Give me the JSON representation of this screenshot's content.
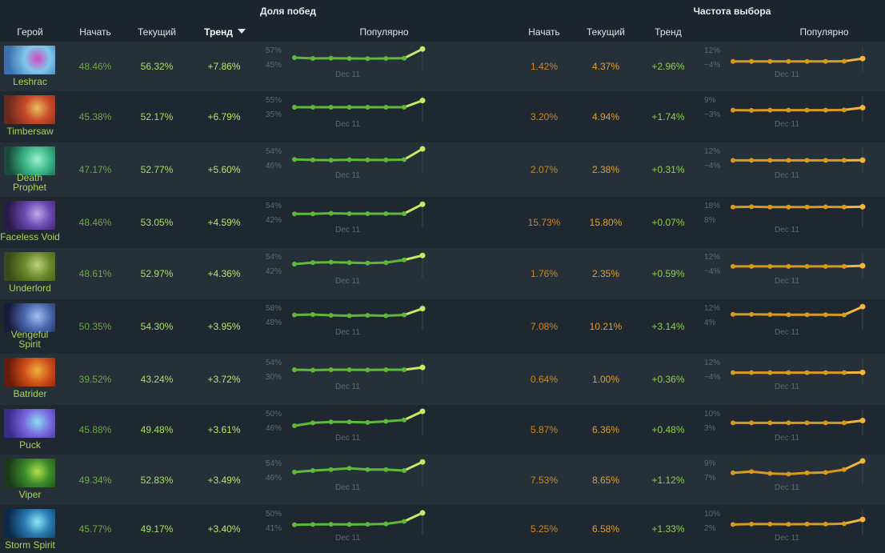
{
  "headers": {
    "winrate_group": "Доля побед",
    "pick_group": "Частота выбора",
    "hero": "Герой",
    "start": "Начать",
    "current": "Текущий",
    "trend": "Тренд",
    "popular": "Популярно",
    "start2": "Начать",
    "current2": "Текущий",
    "trend2": "Тренд",
    "popular2": "Популярно"
  },
  "colors": {
    "winrate_line": "#5fb83a",
    "winrate_last": "#c8e86a",
    "pick_line": "#d89a1e",
    "pick_last": "#f2b53a",
    "bg": "#1c242d"
  },
  "heroes": [
    {
      "name": "Leshrac",
      "portrait": "leshrac-portrait",
      "wr_start": "48.46%",
      "wr_cur": "56.32%",
      "wr_trend": "+7.86%",
      "wr_hi": "57%",
      "wr_lo": "45%",
      "wr_date": "Dec 11",
      "pk_start": "1.42%",
      "pk_cur": "4.37%",
      "pk_trend": "+2.96%",
      "pk_hi": "12%",
      "pk_lo": "−4%",
      "pk_date": "Dec 11",
      "wr_series": [
        0.5,
        0.46,
        0.47,
        0.46,
        0.45,
        0.46,
        0.47,
        0.95
      ],
      "pk_series": [
        0.3,
        0.3,
        0.3,
        0.3,
        0.3,
        0.3,
        0.31,
        0.45
      ]
    },
    {
      "name": "Timbersaw",
      "portrait": "timbersaw-portrait",
      "wr_start": "45.38%",
      "wr_cur": "52.17%",
      "wr_trend": "+6.79%",
      "wr_hi": "55%",
      "wr_lo": "35%",
      "wr_date": "Dec 11",
      "pk_start": "3.20%",
      "pk_cur": "4.94%",
      "pk_trend": "+1.74%",
      "pk_hi": "9%",
      "pk_lo": "−3%",
      "pk_date": "Dec 11",
      "wr_series": [
        0.5,
        0.5,
        0.5,
        0.5,
        0.5,
        0.5,
        0.5,
        0.85
      ],
      "pk_series": [
        0.35,
        0.34,
        0.35,
        0.35,
        0.35,
        0.35,
        0.36,
        0.48
      ]
    },
    {
      "name": "Death Prophet",
      "portrait": "death-prophet-portrait",
      "wr_start": "47.17%",
      "wr_cur": "52.77%",
      "wr_trend": "+5.60%",
      "wr_hi": "54%",
      "wr_lo": "46%",
      "wr_date": "Dec 11",
      "pk_start": "2.07%",
      "pk_cur": "2.38%",
      "pk_trend": "+0.31%",
      "pk_hi": "12%",
      "pk_lo": "−4%",
      "pk_date": "Dec 11",
      "wr_series": [
        0.45,
        0.42,
        0.41,
        0.43,
        0.42,
        0.42,
        0.44,
        1.0
      ],
      "pk_series": [
        0.4,
        0.4,
        0.4,
        0.4,
        0.4,
        0.4,
        0.4,
        0.41
      ]
    },
    {
      "name": "Faceless Void",
      "portrait": "faceless-void-portrait",
      "wr_start": "48.46%",
      "wr_cur": "53.05%",
      "wr_trend": "+4.59%",
      "wr_hi": "54%",
      "wr_lo": "42%",
      "wr_date": "Dec 11",
      "pk_start": "15.73%",
      "pk_cur": "15.80%",
      "pk_trend": "+0.07%",
      "pk_hi": "18%",
      "pk_lo": "8%",
      "pk_date": "Dec 11",
      "wr_series": [
        0.45,
        0.45,
        0.48,
        0.46,
        0.46,
        0.46,
        0.46,
        0.95
      ],
      "pk_series": [
        0.8,
        0.82,
        0.8,
        0.8,
        0.8,
        0.81,
        0.8,
        0.82
      ]
    },
    {
      "name": "Underlord",
      "portrait": "underlord-portrait",
      "wr_start": "48.61%",
      "wr_cur": "52.97%",
      "wr_trend": "+4.36%",
      "wr_hi": "54%",
      "wr_lo": "42%",
      "wr_date": "Dec 11",
      "pk_start": "1.76%",
      "pk_cur": "2.35%",
      "pk_trend": "+0.59%",
      "pk_hi": "12%",
      "pk_lo": "−4%",
      "pk_date": "Dec 11",
      "wr_series": [
        0.5,
        0.58,
        0.6,
        0.58,
        0.55,
        0.58,
        0.72,
        0.95
      ],
      "pk_series": [
        0.38,
        0.38,
        0.38,
        0.38,
        0.38,
        0.38,
        0.38,
        0.41
      ]
    },
    {
      "name": "Vengeful Spirit",
      "portrait": "vengeful-spirit-portrait",
      "wr_start": "50.35%",
      "wr_cur": "54.30%",
      "wr_trend": "+3.95%",
      "wr_hi": "58%",
      "wr_lo": "48%",
      "wr_date": "Dec 11",
      "pk_start": "7.08%",
      "pk_cur": "10.21%",
      "pk_trend": "+3.14%",
      "pk_hi": "12%",
      "pk_lo": "4%",
      "pk_date": "Dec 11",
      "wr_series": [
        0.52,
        0.54,
        0.5,
        0.48,
        0.5,
        0.48,
        0.52,
        0.85
      ],
      "pk_series": [
        0.55,
        0.55,
        0.54,
        0.53,
        0.53,
        0.53,
        0.52,
        0.95
      ]
    },
    {
      "name": "Batrider",
      "portrait": "batrider-portrait",
      "wr_start": "39.52%",
      "wr_cur": "43.24%",
      "wr_trend": "+3.72%",
      "wr_hi": "54%",
      "wr_lo": "30%",
      "wr_date": "Dec 11",
      "pk_start": "0.64%",
      "pk_cur": "1.00%",
      "pk_trend": "+0.36%",
      "pk_hi": "12%",
      "pk_lo": "−4%",
      "pk_date": "Dec 11",
      "wr_series": [
        0.5,
        0.48,
        0.5,
        0.5,
        0.49,
        0.5,
        0.5,
        0.62
      ],
      "pk_series": [
        0.35,
        0.35,
        0.35,
        0.35,
        0.35,
        0.35,
        0.35,
        0.36
      ]
    },
    {
      "name": "Puck",
      "portrait": "puck-portrait",
      "wr_start": "45.88%",
      "wr_cur": "49.48%",
      "wr_trend": "+3.61%",
      "wr_hi": "50%",
      "wr_lo": "46%",
      "wr_date": "Dec 11",
      "pk_start": "5.87%",
      "pk_cur": "6.36%",
      "pk_trend": "+0.48%",
      "pk_hi": "10%",
      "pk_lo": "3%",
      "pk_date": "Dec 11",
      "wr_series": [
        0.25,
        0.4,
        0.45,
        0.45,
        0.42,
        0.48,
        0.55,
        1.0
      ],
      "pk_series": [
        0.4,
        0.4,
        0.4,
        0.4,
        0.4,
        0.4,
        0.4,
        0.52
      ]
    },
    {
      "name": "Viper",
      "portrait": "viper-portrait",
      "wr_start": "49.34%",
      "wr_cur": "52.83%",
      "wr_trend": "+3.49%",
      "wr_hi": "54%",
      "wr_lo": "46%",
      "wr_date": "Dec 11",
      "pk_start": "7.53%",
      "pk_cur": "8.65%",
      "pk_trend": "+1.12%",
      "pk_hi": "9%",
      "pk_lo": "7%",
      "pk_date": "Dec 11",
      "wr_series": [
        0.42,
        0.5,
        0.55,
        0.62,
        0.55,
        0.55,
        0.5,
        0.95
      ],
      "pk_series": [
        0.38,
        0.45,
        0.35,
        0.32,
        0.38,
        0.4,
        0.55,
        1.0
      ]
    },
    {
      "name": "Storm Spirit",
      "portrait": "storm-spirit-portrait",
      "wr_start": "45.77%",
      "wr_cur": "49.17%",
      "wr_trend": "+3.40%",
      "wr_hi": "50%",
      "wr_lo": "41%",
      "wr_date": "Dec 11",
      "pk_start": "5.25%",
      "pk_cur": "6.58%",
      "pk_trend": "+1.33%",
      "pk_hi": "10%",
      "pk_lo": "2%",
      "pk_date": "Dec 11",
      "wr_series": [
        0.3,
        0.32,
        0.33,
        0.32,
        0.33,
        0.35,
        0.48,
        0.92
      ],
      "pk_series": [
        0.32,
        0.34,
        0.34,
        0.33,
        0.34,
        0.34,
        0.36,
        0.58
      ]
    }
  ]
}
